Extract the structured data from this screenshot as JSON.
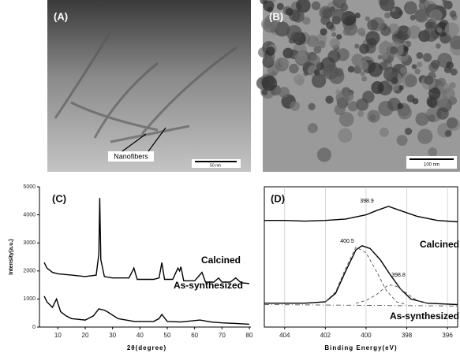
{
  "images": [
    {
      "label": "(A)",
      "annotation": "Nanofibers",
      "scale_bar": "50 nm"
    },
    {
      "label": "(B)",
      "scale_bar": "100 nm"
    }
  ],
  "chart_data": [
    {
      "type": "line",
      "label": "(C)",
      "x_label": "2θ(degree)",
      "y_label": "Intensity(a.u.)",
      "xlim": [
        5,
        80
      ],
      "xticks": [
        10,
        20,
        30,
        40,
        50,
        60,
        70,
        80
      ],
      "ylim": [
        0,
        5000
      ],
      "yticks": [
        0,
        1000,
        2000,
        3000,
        4000,
        5000
      ],
      "series": [
        {
          "name": "Calcined",
          "color": "#000000",
          "x": [
            5,
            6,
            8,
            10,
            15,
            20,
            24,
            25,
            25.3,
            25.7,
            27,
            30,
            36,
            37.8,
            39,
            45,
            47,
            48,
            49,
            52,
            53.9,
            54.5,
            55,
            56,
            60,
            62.7,
            64,
            67,
            68.8,
            70,
            73,
            75,
            77,
            80
          ],
          "values": [
            2300,
            2100,
            1950,
            1900,
            1850,
            1800,
            1850,
            2600,
            4600,
            2400,
            1800,
            1750,
            1750,
            2100,
            1700,
            1700,
            1750,
            2300,
            1700,
            1700,
            2100,
            2000,
            2150,
            1650,
            1650,
            1950,
            1600,
            1600,
            1750,
            1600,
            1600,
            1750,
            1580,
            1550
          ]
        },
        {
          "name": "As-synthesized",
          "color": "#000000",
          "x": [
            5,
            6,
            7,
            8,
            9.5,
            11,
            13,
            15,
            20,
            23,
            25,
            27,
            28,
            32,
            38,
            45,
            47,
            48,
            50,
            55,
            62,
            66,
            70,
            75,
            80
          ],
          "values": [
            1100,
            900,
            800,
            700,
            1000,
            550,
            400,
            300,
            250,
            400,
            650,
            600,
            550,
            300,
            200,
            200,
            300,
            450,
            200,
            180,
            250,
            180,
            150,
            130,
            100
          ]
        }
      ]
    },
    {
      "type": "line",
      "label": "(D)",
      "x_label": "Binding Energy(eV)",
      "xlim": [
        405,
        395.5
      ],
      "xticks": [
        404,
        402,
        400,
        398,
        396
      ],
      "ylim": [
        0,
        100
      ],
      "grid": true,
      "series": [
        {
          "name": "Calcined",
          "color": "#000000",
          "x": [
            405,
            404,
            403,
            402,
            401,
            400,
            399.5,
            398.9,
            398.3,
            397.5,
            396.5,
            395.5
          ],
          "values": [
            76,
            76,
            75.5,
            76,
            77,
            80,
            83,
            86,
            83,
            79,
            76,
            75
          ]
        },
        {
          "name": "As-synthesized",
          "color": "#000000",
          "x": [
            405,
            403,
            402,
            401.5,
            401,
            400.5,
            400.2,
            399.8,
            399.3,
            398.8,
            398.3,
            397.8,
            397,
            395.5
          ],
          "values": [
            17,
            17,
            18,
            24,
            40,
            55,
            58,
            56,
            48,
            37,
            27,
            20,
            17,
            16
          ]
        },
        {
          "color": "#555555",
          "dash": "dashed",
          "x": [
            402,
            401.5,
            401,
            400.5,
            400,
            399.5,
            399,
            398.5,
            398
          ],
          "values": [
            18,
            25,
            42,
            57,
            53,
            40,
            26,
            18,
            16
          ]
        },
        {
          "color": "#555555",
          "dash": "dashed",
          "x": [
            400.5,
            400,
            399.5,
            399,
            398.8,
            398.5,
            398,
            397.5,
            397
          ],
          "values": [
            17,
            19,
            23,
            29,
            30,
            29,
            24,
            19,
            17
          ]
        },
        {
          "color": "#555555",
          "dash": "dashdot",
          "x": [
            405,
            395.5
          ],
          "values": [
            16,
            15
          ]
        }
      ],
      "annotations": [
        "398.9",
        "400.5",
        "398.8"
      ]
    }
  ]
}
